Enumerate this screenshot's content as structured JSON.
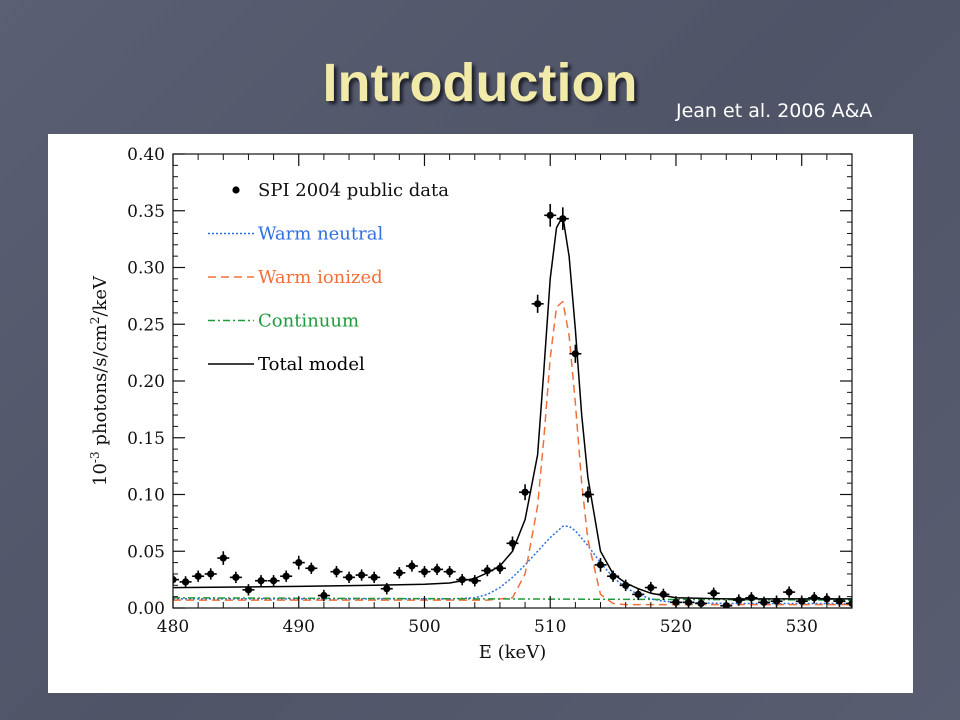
{
  "slide": {
    "title": "Introduction",
    "citation": "Jean et al. 2006 A&A"
  },
  "chart_data": {
    "type": "line",
    "title": "",
    "xlabel": "E (keV)",
    "ylabel": "10",
    "ylabel_superscript": "-3",
    "ylabel_rest": " photons/s/cm",
    "ylabel_superscript2": "2",
    "ylabel_tail": "/keV",
    "xlim": [
      480,
      534
    ],
    "ylim": [
      0,
      0.4
    ],
    "xticks": [
      480,
      490,
      500,
      510,
      520,
      530
    ],
    "yticks": [
      0.0,
      0.05,
      0.1,
      0.15,
      0.2,
      0.25,
      0.3,
      0.35,
      0.4
    ],
    "legend_position": "top-left",
    "grid": false,
    "colors": {
      "data": "#000000",
      "warm_neutral": "#2f6fe0",
      "warm_ionized": "#f0703a",
      "continuum": "#1e9b3c",
      "total": "#000000"
    },
    "series": [
      {
        "name": "SPI 2004 public data",
        "style": "points",
        "x": [
          480,
          481,
          482,
          483,
          484,
          485,
          486,
          487,
          488,
          489,
          490,
          491,
          492,
          493,
          494,
          495,
          496,
          497,
          498,
          499,
          500,
          501,
          502,
          503,
          504,
          505,
          506,
          507,
          508,
          509,
          510,
          511,
          512,
          513,
          514,
          515,
          516,
          517,
          518,
          519,
          520,
          521,
          522,
          523,
          524,
          525,
          526,
          527,
          528,
          529,
          530,
          531,
          532,
          533,
          534
        ],
        "y": [
          0.025,
          0.023,
          0.028,
          0.03,
          0.044,
          0.027,
          0.016,
          0.024,
          0.024,
          0.028,
          0.04,
          0.035,
          0.011,
          0.032,
          0.027,
          0.029,
          0.027,
          0.017,
          0.031,
          0.037,
          0.032,
          0.034,
          0.032,
          0.025,
          0.024,
          0.033,
          0.035,
          0.057,
          0.102,
          0.268,
          0.346,
          0.343,
          0.224,
          0.1,
          0.038,
          0.028,
          0.02,
          0.012,
          0.018,
          0.012,
          0.005,
          0.005,
          0.004,
          0.013,
          0.002,
          0.007,
          0.009,
          0.005,
          0.006,
          0.014,
          0.006,
          0.009,
          0.008,
          0.006,
          0.004
        ],
        "err": [
          0.005,
          0.005,
          0.005,
          0.005,
          0.006,
          0.005,
          0.005,
          0.005,
          0.005,
          0.005,
          0.006,
          0.005,
          0.005,
          0.005,
          0.005,
          0.005,
          0.005,
          0.005,
          0.005,
          0.005,
          0.005,
          0.005,
          0.005,
          0.005,
          0.005,
          0.005,
          0.005,
          0.006,
          0.007,
          0.008,
          0.01,
          0.01,
          0.008,
          0.007,
          0.006,
          0.005,
          0.005,
          0.005,
          0.005,
          0.005,
          0.005,
          0.005,
          0.005,
          0.005,
          0.005,
          0.005,
          0.005,
          0.005,
          0.005,
          0.005,
          0.005,
          0.005,
          0.005,
          0.005,
          0.005
        ]
      },
      {
        "name": "Warm neutral",
        "style": "dotted",
        "x": [
          480,
          496,
          502,
          504,
          505,
          506,
          507,
          508,
          509,
          510,
          510.5,
          511,
          511.5,
          512,
          513,
          514,
          515,
          516,
          517,
          518,
          519,
          520,
          524,
          534
        ],
        "y": [
          0.008,
          0.008,
          0.008,
          0.009,
          0.012,
          0.018,
          0.027,
          0.038,
          0.05,
          0.062,
          0.067,
          0.072,
          0.072,
          0.068,
          0.055,
          0.04,
          0.027,
          0.018,
          0.012,
          0.008,
          0.006,
          0.005,
          0.004,
          0.004
        ]
      },
      {
        "name": "Warm ionized",
        "style": "dashed",
        "x": [
          480,
          505,
          507,
          508,
          509,
          509.5,
          510,
          510.5,
          511,
          511.5,
          512,
          512.5,
          513,
          514,
          515,
          516,
          534
        ],
        "y": [
          0.007,
          0.007,
          0.009,
          0.03,
          0.09,
          0.15,
          0.22,
          0.265,
          0.27,
          0.24,
          0.18,
          0.11,
          0.06,
          0.012,
          0.004,
          0.003,
          0.003
        ]
      },
      {
        "name": "Continuum",
        "style": "dash-dot",
        "x": [
          480,
          534
        ],
        "y": [
          0.009,
          0.007
        ]
      },
      {
        "name": "Total model",
        "style": "solid",
        "x": [
          480,
          490,
          496,
          500,
          502,
          504,
          505,
          506,
          507,
          508,
          509,
          509.5,
          510,
          510.5,
          511,
          511.5,
          512,
          512.5,
          513,
          514,
          515,
          516,
          517,
          518,
          519,
          520,
          524,
          534
        ],
        "y": [
          0.018,
          0.019,
          0.02,
          0.021,
          0.022,
          0.026,
          0.031,
          0.037,
          0.05,
          0.078,
          0.135,
          0.21,
          0.29,
          0.335,
          0.345,
          0.31,
          0.245,
          0.17,
          0.115,
          0.05,
          0.03,
          0.022,
          0.017,
          0.013,
          0.011,
          0.009,
          0.008,
          0.008
        ]
      }
    ]
  }
}
